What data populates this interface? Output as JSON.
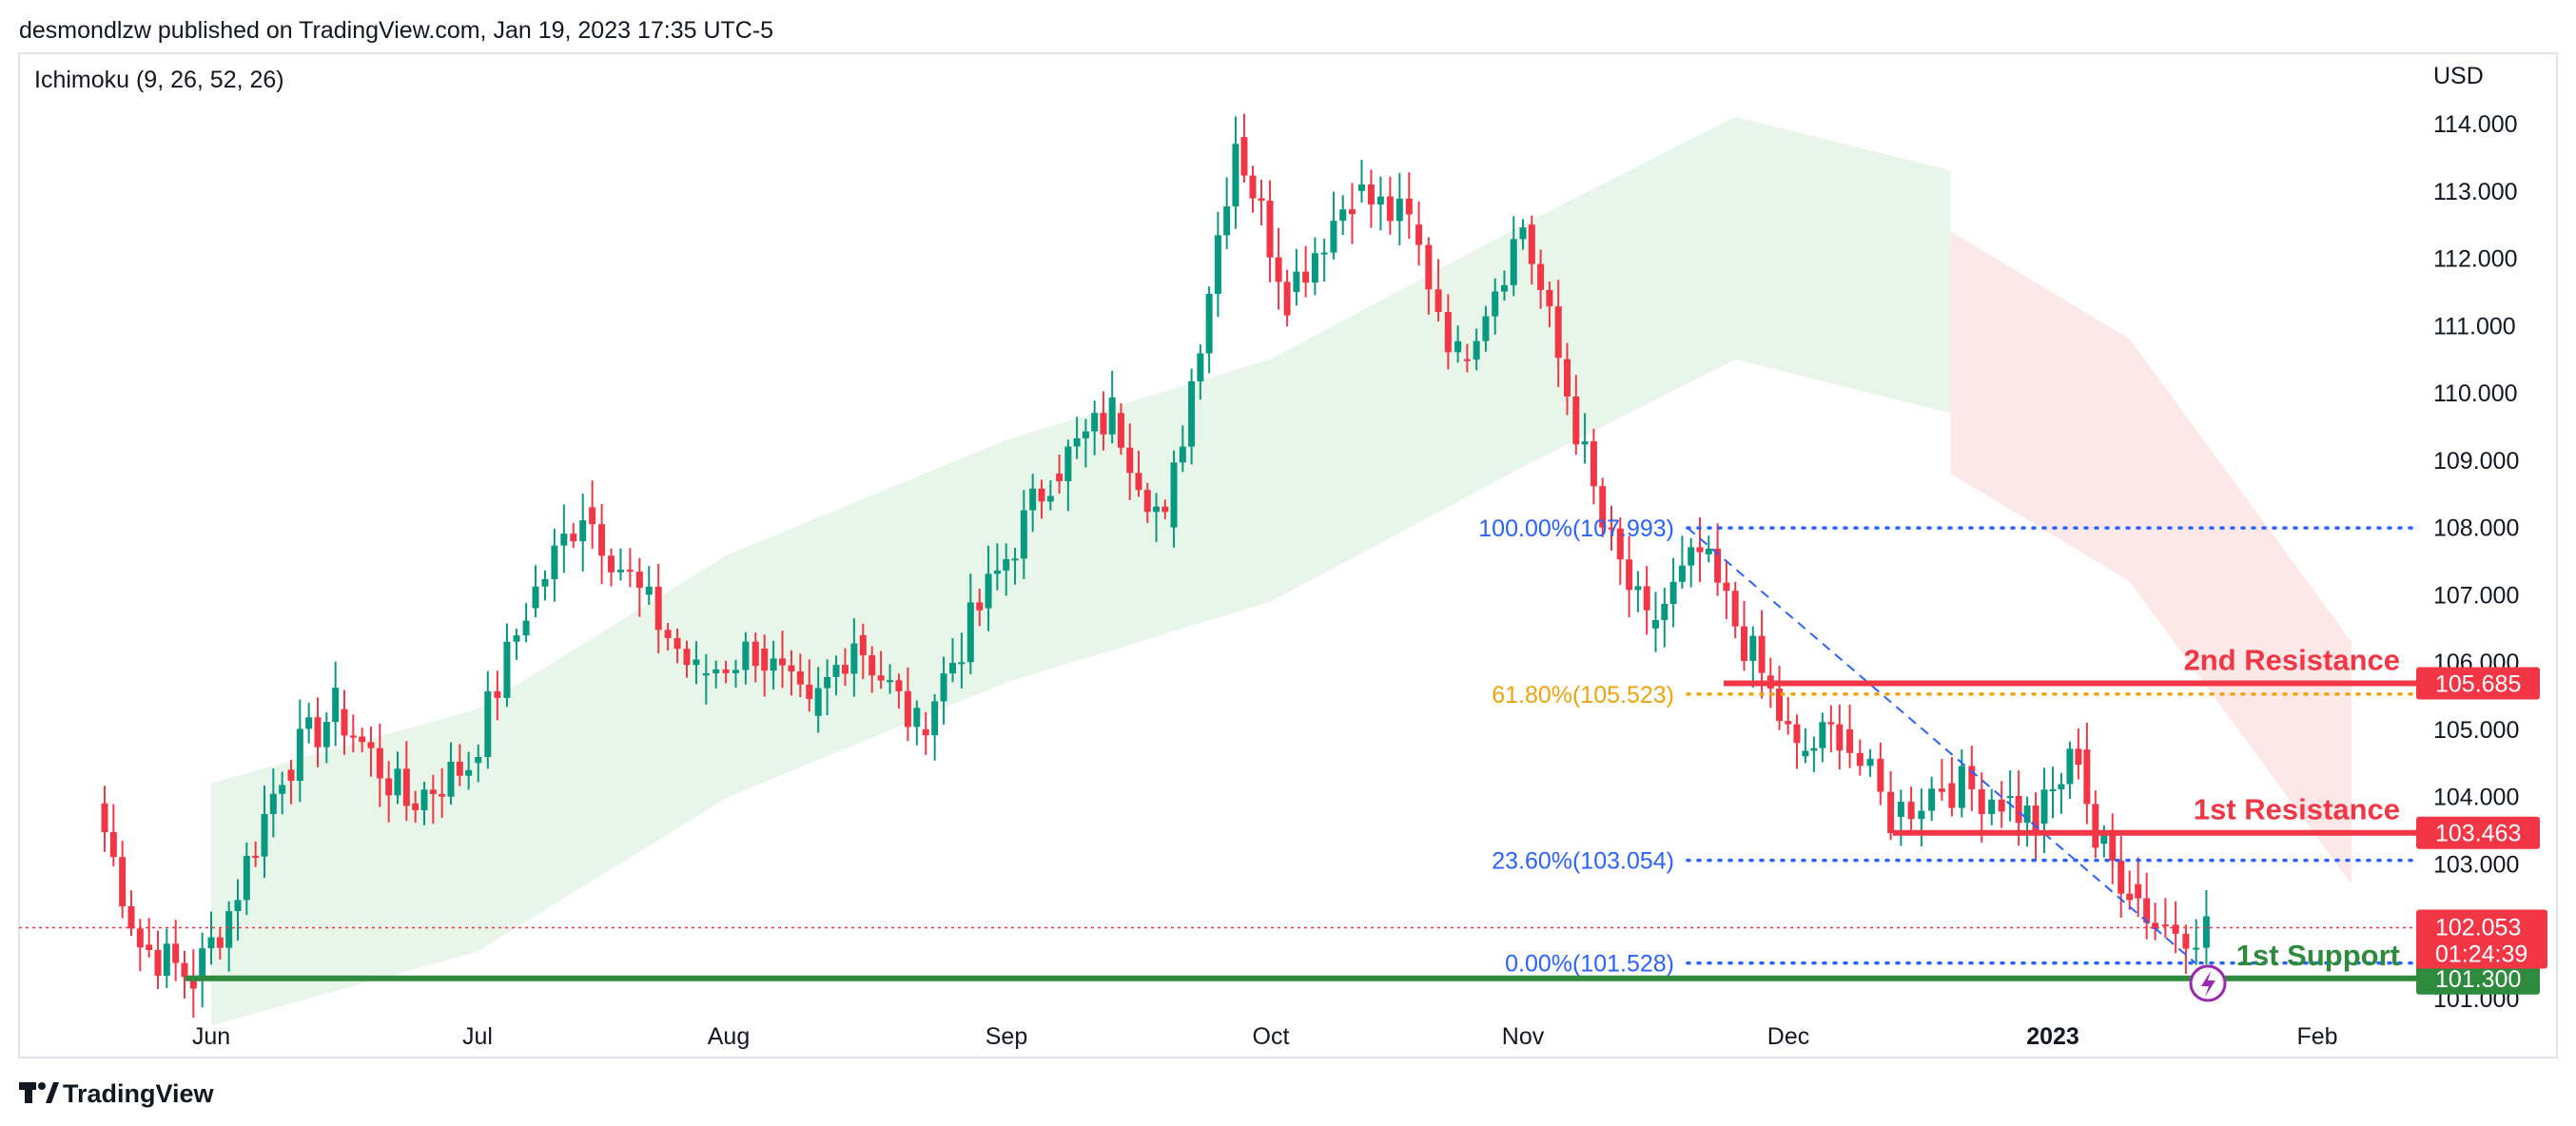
{
  "header": {
    "published_line": "desmondlzw published on TradingView.com, Jan 19, 2023 17:35 UTC-5",
    "indicator_label": "Ichimoku (9, 26, 52, 26)"
  },
  "footer": {
    "brand": "TradingView"
  },
  "colors": {
    "bull": "#089981",
    "bear": "#f23645",
    "fib_blue": "#2962ff",
    "fib_orange": "#f0a30a",
    "support": "#2e8b3d",
    "cloud_green": "#e8f5e9",
    "cloud_red": "#fde8e8"
  },
  "chart_data": {
    "type": "candlestick",
    "symbol_currency": "USD",
    "indicator": "Ichimoku (9, 26, 52, 26)",
    "y_axis": {
      "unit": "USD",
      "ticks": [
        "114.000",
        "113.000",
        "112.000",
        "111.000",
        "110.000",
        "109.000",
        "108.000",
        "107.000",
        "106.000",
        "105.000",
        "104.000",
        "103.000",
        "102.000",
        "101.000"
      ],
      "range": [
        100.7,
        115.0
      ]
    },
    "x_axis": {
      "ticks": [
        "Jun",
        "Jul",
        "Aug",
        "Sep",
        "Oct",
        "Nov",
        "Dec",
        "2023",
        "Feb"
      ]
    },
    "price_path": [
      [
        "2022-05-19",
        103.9
      ],
      [
        "2022-05-24",
        101.8
      ],
      [
        "2022-05-30",
        101.3
      ],
      [
        "2022-06-03",
        102.3
      ],
      [
        "2022-06-09",
        104.4
      ],
      [
        "2022-06-15",
        105.3
      ],
      [
        "2022-06-23",
        103.9
      ],
      [
        "2022-06-30",
        104.5
      ],
      [
        "2022-07-07",
        106.8
      ],
      [
        "2022-07-14",
        108.3
      ],
      [
        "2022-07-21",
        107.0
      ],
      [
        "2022-07-28",
        105.8
      ],
      [
        "2022-08-04",
        106.2
      ],
      [
        "2022-08-10",
        105.2
      ],
      [
        "2022-08-15",
        106.4
      ],
      [
        "2022-08-22",
        105.0
      ],
      [
        "2022-08-29",
        106.8
      ],
      [
        "2022-09-06",
        108.8
      ],
      [
        "2022-09-13",
        109.7
      ],
      [
        "2022-09-19",
        108.0
      ],
      [
        "2022-09-27",
        113.8
      ],
      [
        "2022-10-03",
        111.5
      ],
      [
        "2022-10-11",
        113.0
      ],
      [
        "2022-10-18",
        112.5
      ],
      [
        "2022-10-24",
        110.5
      ],
      [
        "2022-11-01",
        112.5
      ],
      [
        "2022-11-05",
        110.5
      ],
      [
        "2022-11-10",
        108.0
      ],
      [
        "2022-11-15",
        106.5
      ],
      [
        "2022-11-21",
        107.6
      ],
      [
        "2022-11-28",
        105.8
      ],
      [
        "2022-12-02",
        104.6
      ],
      [
        "2022-12-07",
        105.0
      ],
      [
        "2022-12-13",
        103.7
      ],
      [
        "2022-12-19",
        104.2
      ],
      [
        "2022-12-26",
        104.0
      ],
      [
        "2022-12-30",
        103.6
      ],
      [
        "2023-01-04",
        104.7
      ],
      [
        "2023-01-06",
        103.3
      ],
      [
        "2023-01-10",
        102.7
      ],
      [
        "2023-01-13",
        102.1
      ],
      [
        "2023-01-19",
        102.053
      ]
    ],
    "ichimoku_cloud": {
      "bullish": [
        [
          "2022-06-01",
          102.4
        ],
        [
          "2022-07-01",
          103.5
        ],
        [
          "2022-08-01",
          105.8
        ],
        [
          "2022-09-01",
          107.5
        ],
        [
          "2022-10-01",
          108.7
        ],
        [
          "2022-11-01",
          110.7
        ],
        [
          "2022-11-25",
          112.3
        ],
        [
          "2022-12-20",
          111.5
        ]
      ],
      "bearish": [
        [
          "2022-12-20",
          110.6
        ],
        [
          "2023-01-10",
          109.0
        ],
        [
          "2023-02-05",
          104.5
        ]
      ]
    },
    "fibonacci": [
      {
        "label": "100.00%(107.993)",
        "level": 107.993
      },
      {
        "label": "61.80%(105.523)",
        "level": 105.523
      },
      {
        "label": "23.60%(103.054)",
        "level": 103.054
      },
      {
        "label": "0.00%(101.528)",
        "level": 101.528
      }
    ],
    "levels": [
      {
        "name": "2nd Resistance",
        "price_label": "105.685",
        "value": 105.685
      },
      {
        "name": "1st Resistance",
        "price_label": "103.463",
        "value": 103.463
      },
      {
        "name": "1st Support",
        "price_label": "101.300",
        "value": 101.3
      }
    ],
    "last_price": {
      "value": "102.053",
      "countdown": "01:24:39"
    },
    "title": "",
    "xlabel": "",
    "ylabel": "USD"
  }
}
